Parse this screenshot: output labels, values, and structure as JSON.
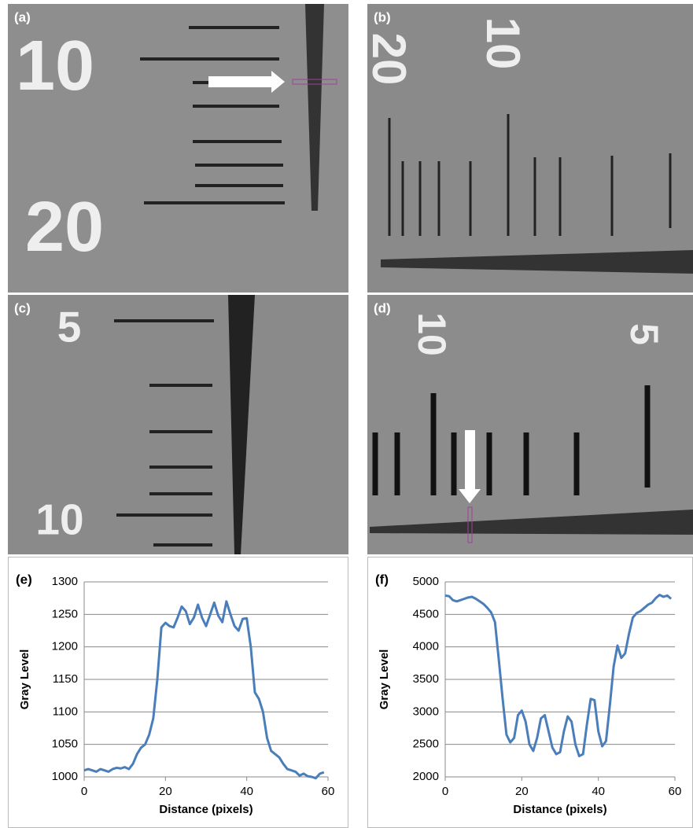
{
  "panels": [
    {
      "label": "(a)",
      "numbers": [
        "10",
        "20"
      ]
    },
    {
      "label": "(b)",
      "numbers": [
        "20",
        "10"
      ]
    },
    {
      "label": "(c)",
      "numbers": [
        "5",
        "10"
      ]
    },
    {
      "label": "(d)",
      "numbers": [
        "10",
        "5"
      ]
    }
  ],
  "chart_data": [
    {
      "type": "line",
      "panel_label": "(e)",
      "y_label": "Gray Level",
      "x_label": "Distance (pixels)",
      "xlim": [
        0,
        60
      ],
      "xticks": [
        0,
        20,
        40,
        60
      ],
      "ylim": [
        1000,
        1300
      ],
      "yticks": [
        1000,
        1050,
        1100,
        1150,
        1200,
        1250,
        1300
      ],
      "grid": true,
      "x": [
        0,
        1,
        2,
        3,
        4,
        5,
        6,
        7,
        8,
        9,
        10,
        11,
        12,
        13,
        14,
        15,
        16,
        17,
        18,
        19,
        20,
        21,
        22,
        23,
        24,
        25,
        26,
        27,
        28,
        29,
        30,
        31,
        32,
        33,
        34,
        35,
        36,
        37,
        38,
        39,
        40,
        41,
        42,
        43,
        44,
        45,
        46,
        47,
        48,
        49,
        50,
        51,
        52,
        53,
        54,
        55,
        56,
        57,
        58,
        59
      ],
      "series": [
        {
          "color": "#4a7ebb",
          "values": [
            1010,
            1012,
            1010,
            1008,
            1012,
            1010,
            1008,
            1012,
            1014,
            1013,
            1015,
            1012,
            1020,
            1035,
            1045,
            1050,
            1065,
            1090,
            1150,
            1230,
            1237,
            1232,
            1230,
            1245,
            1262,
            1255,
            1235,
            1245,
            1265,
            1245,
            1232,
            1250,
            1268,
            1248,
            1238,
            1270,
            1250,
            1232,
            1225,
            1243,
            1244,
            1200,
            1130,
            1120,
            1100,
            1060,
            1040,
            1035,
            1030,
            1020,
            1012,
            1010,
            1008,
            1002,
            1005,
            1001,
            1000,
            998,
            1005,
            1007
          ]
        }
      ]
    },
    {
      "type": "line",
      "panel_label": "(f)",
      "y_label": "Gray Level",
      "x_label": "Distance (pixels)",
      "xlim": [
        0,
        60
      ],
      "xticks": [
        0,
        20,
        40,
        60
      ],
      "ylim": [
        2000,
        5000
      ],
      "yticks": [
        2000,
        2500,
        3000,
        3500,
        4000,
        4500,
        5000
      ],
      "grid": true,
      "x": [
        0,
        1,
        2,
        3,
        4,
        5,
        6,
        7,
        8,
        9,
        10,
        11,
        12,
        13,
        14,
        15,
        16,
        17,
        18,
        19,
        20,
        21,
        22,
        23,
        24,
        25,
        26,
        27,
        28,
        29,
        30,
        31,
        32,
        33,
        34,
        35,
        36,
        37,
        38,
        39,
        40,
        41,
        42,
        43,
        44,
        45,
        46,
        47,
        48,
        49,
        50,
        51,
        52,
        53,
        54,
        55,
        56,
        57,
        58,
        59
      ],
      "series": [
        {
          "color": "#4a7ebb",
          "values": [
            4790,
            4780,
            4720,
            4700,
            4720,
            4740,
            4760,
            4770,
            4740,
            4700,
            4660,
            4600,
            4530,
            4380,
            3800,
            3200,
            2650,
            2530,
            2600,
            2950,
            3020,
            2850,
            2500,
            2400,
            2600,
            2900,
            2950,
            2700,
            2450,
            2350,
            2380,
            2700,
            2930,
            2850,
            2500,
            2320,
            2350,
            2800,
            3200,
            3180,
            2700,
            2470,
            2550,
            3100,
            3700,
            4020,
            3830,
            3900,
            4200,
            4450,
            4520,
            4550,
            4600,
            4650,
            4680,
            4750,
            4800,
            4770,
            4790,
            4740
          ]
        }
      ]
    }
  ]
}
